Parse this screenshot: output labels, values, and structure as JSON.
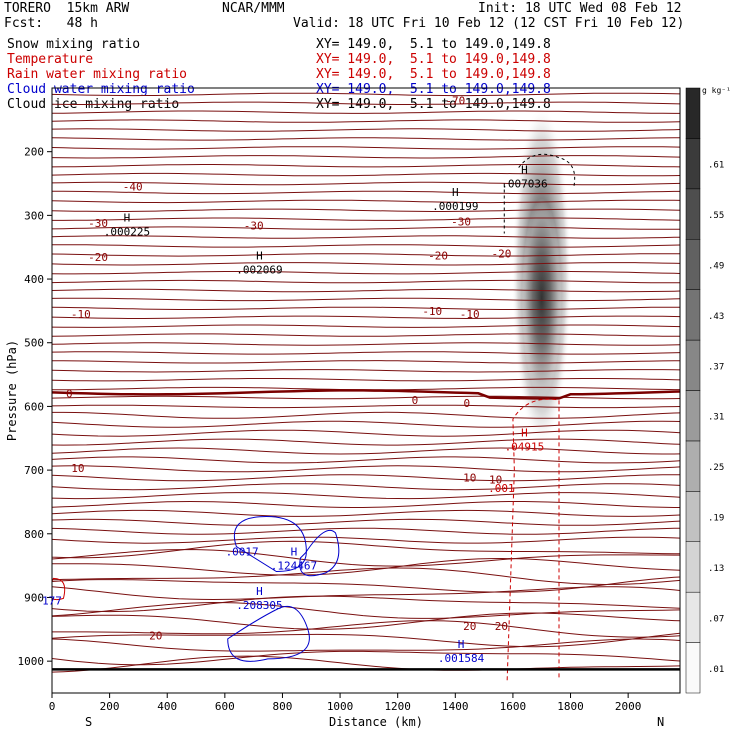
{
  "header": {
    "model": "TORERO  15km ARW",
    "center": "NCAR/MMM",
    "init": "Init: 18 UTC Wed 08 Feb 12",
    "fcst": "Fcst:   48 h",
    "valid": "Valid: 18 UTC Fri 10 Feb 12 (12 CST Fri 10 Feb 12)"
  },
  "fields": [
    {
      "name": "Snow mixing ratio",
      "color": "#000000",
      "xy": "XY= 149.0,  5.1 to 149.0,149.8",
      "xy_color": "#000000"
    },
    {
      "name": "Temperature",
      "color": "#cc0000",
      "xy": "XY= 149.0,  5.1 to 149.0,149.8",
      "xy_color": "#cc0000"
    },
    {
      "name": "Rain water mixing ratio",
      "color": "#cc0000",
      "xy": "XY= 149.0,  5.1 to 149.0,149.8",
      "xy_color": "#cc0000"
    },
    {
      "name": "Cloud water mixing ratio",
      "color": "#0000cc",
      "xy": "XY= 149.0,  5.1 to 149.0,149.8",
      "xy_color": "#0000cc"
    },
    {
      "name": "Cloud ice mixing ratio",
      "color": "#000000",
      "xy": "XY= 149.0,  5.1 to 149.0,149.8",
      "xy_color": "#000000"
    }
  ],
  "chart_data": {
    "type": "contour-cross-section",
    "xlabel": "Distance (km)",
    "ylabel": "Pressure (hPa)",
    "xlim": [
      0,
      2180
    ],
    "ylim": [
      1050,
      100
    ],
    "x_ticks": [
      0,
      200,
      400,
      600,
      800,
      1000,
      1200,
      1400,
      1600,
      1800,
      2000
    ],
    "y_ticks": [
      200,
      300,
      400,
      500,
      600,
      700,
      800,
      900,
      1000
    ],
    "x_ends": {
      "left": "S",
      "right": "N"
    },
    "colorbar": {
      "unit": "g kg⁻¹",
      "labels": [
        ".01",
        ".07",
        ".13",
        ".19",
        ".25",
        ".31",
        ".37",
        ".43",
        ".49",
        ".55",
        ".61"
      ],
      "levels": [
        0.01,
        0.07,
        0.13,
        0.19,
        0.25,
        0.31,
        0.37,
        0.43,
        0.49,
        0.55,
        0.61,
        0.67
      ]
    },
    "temperature_isotherms": {
      "color": "#8b0000",
      "labels": [
        {
          "text": "-70",
          "x": 1400,
          "p": 120
        },
        {
          "text": "-40",
          "x": 280,
          "p": 255
        },
        {
          "text": "-30",
          "x": 160,
          "p": 312
        },
        {
          "text": "-30",
          "x": 700,
          "p": 316
        },
        {
          "text": "-30",
          "x": 1420,
          "p": 310
        },
        {
          "text": "-20",
          "x": 160,
          "p": 365
        },
        {
          "text": "-20",
          "x": 1340,
          "p": 363
        },
        {
          "text": "-20",
          "x": 1560,
          "p": 360
        },
        {
          "text": "-10",
          "x": 100,
          "p": 455
        },
        {
          "text": "-10",
          "x": 1320,
          "p": 450
        },
        {
          "text": "-10",
          "x": 1450,
          "p": 455
        },
        {
          "text": "0",
          "x": 60,
          "p": 580
        },
        {
          "text": "0",
          "x": 1260,
          "p": 590
        },
        {
          "text": "0",
          "x": 1440,
          "p": 595
        },
        {
          "text": "10",
          "x": 90,
          "p": 697
        },
        {
          "text": "10",
          "x": 1450,
          "p": 712
        },
        {
          "text": "10",
          "x": 1540,
          "p": 715
        },
        {
          "text": "20",
          "x": 360,
          "p": 960
        },
        {
          "text": "20",
          "x": 1450,
          "p": 945
        },
        {
          "text": "20",
          "x": 1560,
          "p": 945
        }
      ]
    },
    "snow_max_labels": [
      {
        "text": "H",
        "value": ".007036",
        "x": 1640,
        "p": 250,
        "color": "#000000"
      },
      {
        "text": "H",
        "value": ".000199",
        "x": 1400,
        "p": 285,
        "color": "#000000"
      },
      {
        "text": "H",
        "value": ".000225",
        "x": 260,
        "p": 325,
        "color": "#000000"
      },
      {
        "text": "H",
        "value": ".002069",
        "x": 720,
        "p": 385,
        "color": "#000000"
      }
    ],
    "rain_max_labels": [
      {
        "text": "H",
        "value": ".04915",
        "x": 1640,
        "p": 663,
        "color": "#cc0000"
      },
      {
        "text": "",
        "value": ".001",
        "x": 1560,
        "p": 728,
        "color": "#cc0000"
      }
    ],
    "cloud_water_labels": [
      {
        "text": "",
        "value": ".0017",
        "x": 660,
        "p": 828,
        "color": "#0000cc"
      },
      {
        "text": "H",
        "value": ".124467",
        "x": 840,
        "p": 850,
        "color": "#0000cc"
      },
      {
        "text": "H",
        "value": ".208305",
        "x": 720,
        "p": 912,
        "color": "#0000cc"
      },
      {
        "text": "H",
        "value": ".001584",
        "x": 1420,
        "p": 995,
        "color": "#0000cc"
      },
      {
        "text": "",
        "value": "177",
        "x": 0,
        "p": 905,
        "color": "#0000cc"
      }
    ]
  }
}
